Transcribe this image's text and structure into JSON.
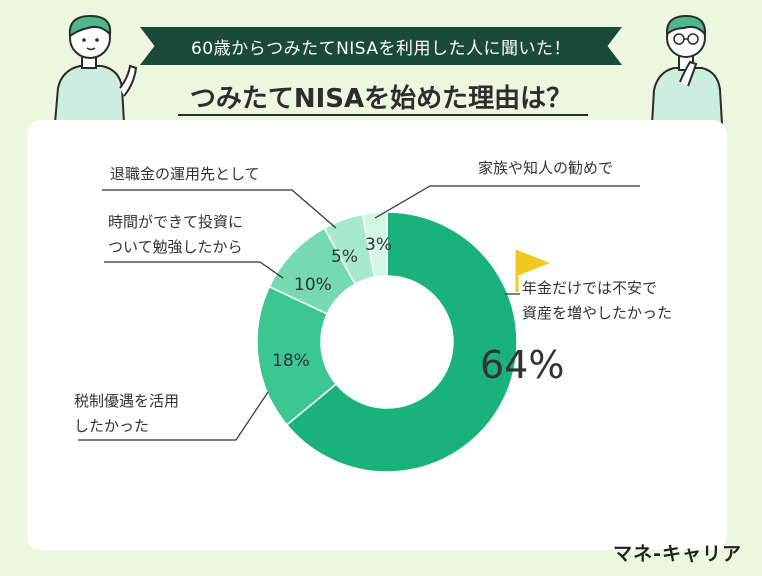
{
  "header": {
    "banner": "60歳からつみたてNISAを利用した人に聞いた！",
    "title": "つみたてNISAを始めた理由は？"
  },
  "chart_data": {
    "type": "pie",
    "donut": true,
    "slices": [
      {
        "label": "年金だけでは不安で資産を増やしたかった",
        "value": 64,
        "display": "64%",
        "color": "#19b27b"
      },
      {
        "label": "税制優遇を活用したかった",
        "value": 18,
        "display": "18%",
        "color": "#3cc692"
      },
      {
        "label": "時間ができて投資について勉強したから",
        "value": 10,
        "display": "10%",
        "color": "#76dab0"
      },
      {
        "label": "退職金の運用先として",
        "value": 5,
        "display": "5%",
        "color": "#a7eacb"
      },
      {
        "label": "家族や知人の勧めで",
        "value": 3,
        "display": "3%",
        "color": "#d3f5e3"
      }
    ]
  },
  "labels": {
    "pension_line1": "年金だけでは不安で",
    "pension_line2": "資産を増やしたかった",
    "tax_line1": "税制優遇を活用",
    "tax_line2": "したかった",
    "time_line1": "時間ができて投資に",
    "time_line2": "ついて勉強したから",
    "retire": "退職金の運用先として",
    "family": "家族や知人の勧めで"
  },
  "brand": {
    "logo": "マネ-キャリア"
  },
  "colors": {
    "banner": "#1b4a3a",
    "background": "#edf6df",
    "flag": "#f3c81e"
  }
}
